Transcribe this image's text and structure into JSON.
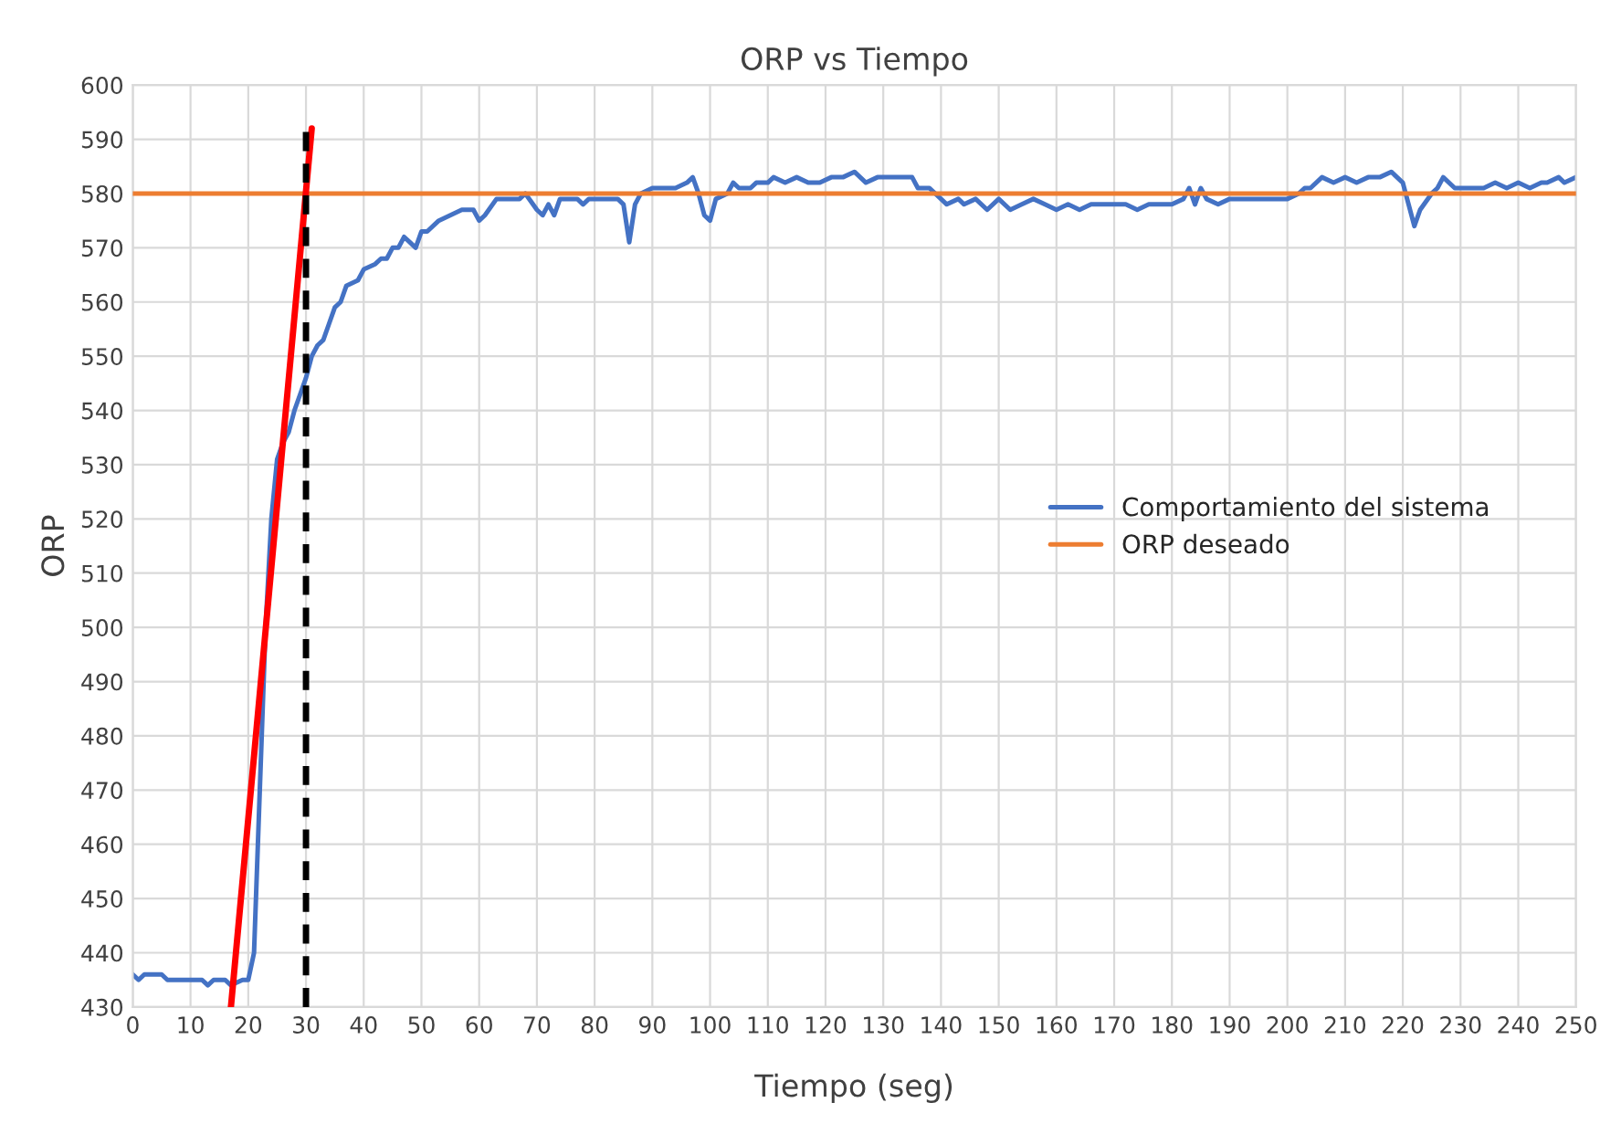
{
  "chart_data": {
    "type": "line",
    "title": "ORP vs Tiempo",
    "xlabel": "Tiempo (seg)",
    "ylabel": "ORP",
    "xlim": [
      0,
      250
    ],
    "ylim": [
      430,
      600
    ],
    "xticks": [
      0,
      10,
      20,
      30,
      40,
      50,
      60,
      70,
      80,
      90,
      100,
      110,
      120,
      130,
      140,
      150,
      160,
      170,
      180,
      190,
      200,
      210,
      220,
      230,
      240,
      250
    ],
    "yticks": [
      430,
      440,
      450,
      460,
      470,
      480,
      490,
      500,
      510,
      520,
      530,
      540,
      550,
      560,
      570,
      580,
      590,
      600
    ],
    "grid": true,
    "legend": "right",
    "line_style": "solid",
    "marker": "none",
    "series": [
      {
        "name": "Comportamiento del sistema",
        "color": "#4472c4",
        "x": [
          0,
          1,
          2,
          5,
          6,
          8,
          12,
          13,
          14,
          16,
          17,
          19,
          20,
          21,
          22,
          23,
          24,
          25,
          26,
          27,
          28,
          29,
          30,
          31,
          32,
          33,
          34,
          35,
          36,
          37,
          39,
          40,
          42,
          43,
          44,
          45,
          46,
          47,
          48,
          49,
          50,
          51,
          53,
          55,
          57,
          59,
          60,
          61,
          63,
          67,
          68,
          70,
          71,
          72,
          73,
          74,
          77,
          78,
          79,
          84,
          85,
          86,
          87,
          88,
          90,
          94,
          96,
          97,
          98,
          99,
          100,
          101,
          103,
          104,
          105,
          107,
          108,
          110,
          111,
          113,
          115,
          117,
          119,
          121,
          123,
          125,
          127,
          129,
          131,
          135,
          136,
          138,
          140,
          141,
          143,
          144,
          146,
          148,
          150,
          152,
          154,
          156,
          158,
          160,
          162,
          164,
          166,
          168,
          170,
          172,
          174,
          176,
          178,
          180,
          182,
          183,
          184,
          185,
          186,
          188,
          190,
          192,
          194,
          196,
          200,
          202,
          203,
          204,
          206,
          208,
          210,
          212,
          214,
          216,
          218,
          220,
          221,
          222,
          223,
          225,
          226,
          227,
          229,
          233,
          234,
          236,
          238,
          240,
          242,
          244,
          245,
          247,
          248,
          250
        ],
        "values": [
          436,
          435,
          436,
          436,
          435,
          435,
          435,
          434,
          435,
          435,
          434,
          435,
          435,
          440,
          470,
          500,
          520,
          531,
          534,
          536,
          540,
          543,
          546,
          550,
          552,
          553,
          556,
          559,
          560,
          563,
          564,
          566,
          567,
          568,
          568,
          570,
          570,
          572,
          571,
          570,
          573,
          573,
          575,
          576,
          577,
          577,
          575,
          576,
          579,
          579,
          580,
          577,
          576,
          578,
          576,
          579,
          579,
          578,
          579,
          579,
          578,
          571,
          578,
          580,
          581,
          581,
          582,
          583,
          580,
          576,
          575,
          579,
          580,
          582,
          581,
          581,
          582,
          582,
          583,
          582,
          583,
          582,
          582,
          583,
          583,
          584,
          582,
          583,
          583,
          583,
          581,
          581,
          579,
          578,
          579,
          578,
          579,
          577,
          579,
          577,
          578,
          579,
          578,
          577,
          578,
          577,
          578,
          578,
          578,
          578,
          577,
          578,
          578,
          578,
          579,
          581,
          578,
          581,
          579,
          578,
          579,
          579,
          579,
          579,
          579,
          580,
          581,
          581,
          583,
          582,
          583,
          582,
          583,
          583,
          584,
          582,
          578,
          574,
          577,
          580,
          581,
          583,
          581,
          581,
          581,
          582,
          581,
          582,
          581,
          582,
          582,
          583,
          582,
          583
        ]
      },
      {
        "name": "ORP deseado",
        "color": "#ed7d31",
        "x": [
          0,
          250
        ],
        "values": [
          580,
          580
        ]
      },
      {
        "type": "line",
        "color": "#ff0000",
        "x": [
          17,
          31
        ],
        "values": [
          430,
          592
        ]
      },
      {
        "type": "line",
        "color": "#000000",
        "line_style": "dashed",
        "x": [
          30,
          30
        ],
        "values": [
          430,
          592
        ]
      }
    ]
  }
}
